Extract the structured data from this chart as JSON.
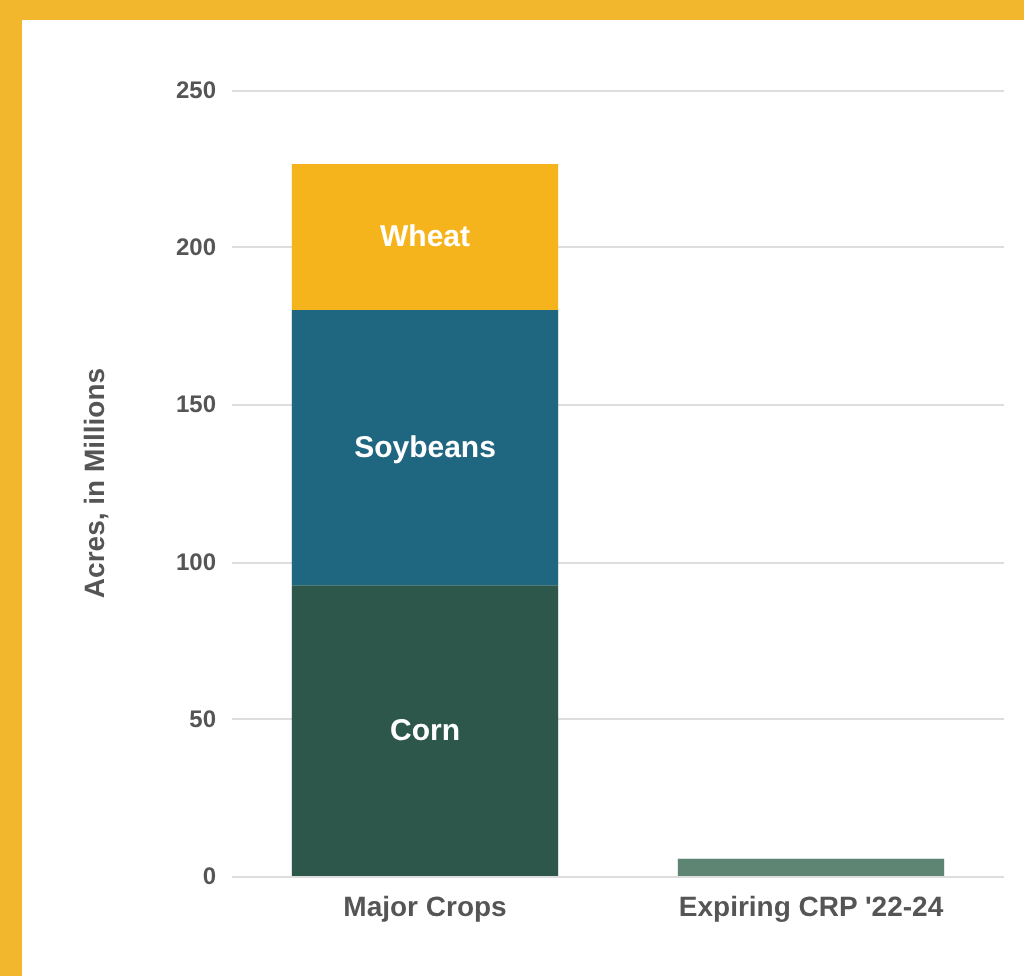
{
  "chart_data": {
    "type": "bar",
    "stacked": true,
    "ylabel": "Acres, in Millions",
    "categories": [
      "Major Crops",
      "Expiring CRP '22-24"
    ],
    "series": [
      {
        "name": "Corn",
        "color": "#2e574c",
        "values": [
          92.5,
          null
        ]
      },
      {
        "name": "Soybeans",
        "color": "#1f6680",
        "values": [
          87.5,
          null
        ]
      },
      {
        "name": "Wheat",
        "color": "#f5b31c",
        "values": [
          46.5,
          null
        ]
      },
      {
        "color": "#5e8474",
        "values": [
          null,
          5.5
        ]
      }
    ],
    "ylim": [
      0,
      250
    ],
    "yticks": [
      0,
      50,
      100,
      150,
      200,
      250
    ],
    "grid": "y",
    "legend": false
  }
}
